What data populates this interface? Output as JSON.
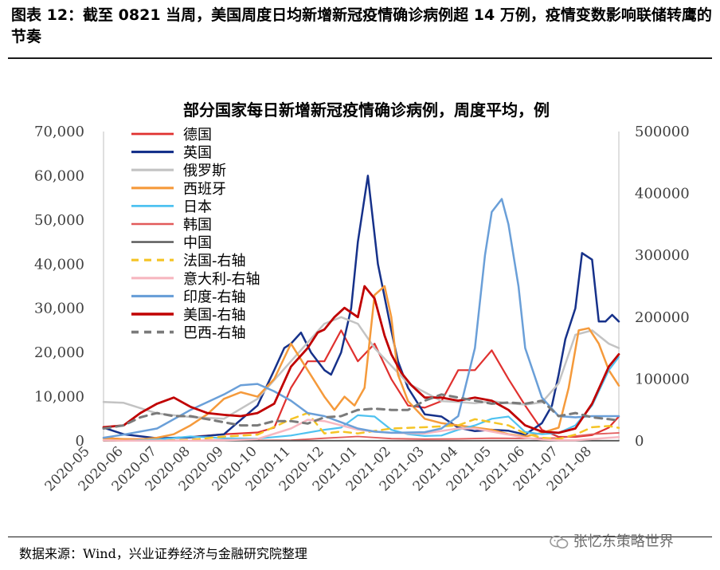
{
  "figure_title": "图表 12：截至 0821 当周，美国周度日均新增新冠疫情确诊病例超 14 万例，疫情变数影响联储转鹰的节奏",
  "source": "数据来源：Wind，兴业证券经济与金融研究院整理",
  "watermark": "张忆东策略世界",
  "chart_data": {
    "type": "line",
    "title": "部分国家每日新增新冠疫情确诊病例，周度平均，例",
    "ylim_left": [
      0,
      70000
    ],
    "ylim_right": [
      0,
      500000
    ],
    "left_ticks": [
      "0",
      "10,000",
      "20,000",
      "30,000",
      "40,000",
      "50,000",
      "60,000",
      "70,000"
    ],
    "right_ticks": [
      "0",
      "100000",
      "200000",
      "300000",
      "400000",
      "500000"
    ],
    "x_ticks": [
      "2020-05",
      "2020-06",
      "2020-07",
      "2020-08",
      "2020-09",
      "2020-10",
      "2020-11",
      "2020-12",
      "2021-01",
      "2021-02",
      "2021-03",
      "2021-04",
      "2021-05",
      "2021-06",
      "2021-07",
      "2021-08"
    ],
    "x_start": 0.4,
    "x_end": 15.8,
    "series": [
      {
        "name": "德国",
        "axis": "left",
        "color": "#e0312f",
        "dash": false,
        "width": 2.2,
        "x": [
          0.4,
          1,
          2,
          3,
          4,
          5,
          5.5,
          6,
          6.5,
          7,
          7.5,
          8,
          8.5,
          9,
          9.5,
          10,
          10.5,
          11,
          11.5,
          12,
          12.5,
          13,
          13.5,
          14,
          14.5,
          15,
          15.5,
          15.8
        ],
        "y": [
          700,
          400,
          400,
          900,
          1500,
          1900,
          3000,
          12000,
          18000,
          18000,
          25000,
          18000,
          22000,
          14000,
          8000,
          7500,
          9000,
          16000,
          16000,
          20500,
          14000,
          8000,
          2500,
          900,
          900,
          1300,
          3000,
          5500
        ]
      },
      {
        "name": "英国",
        "axis": "left",
        "color": "#16318a",
        "dash": false,
        "width": 2.5,
        "x": [
          0.4,
          1,
          2,
          3,
          4,
          5,
          5.5,
          5.8,
          6,
          6.3,
          6.6,
          7,
          7.2,
          7.5,
          7.8,
          8,
          8.3,
          8.6,
          9,
          9.2,
          9.5,
          10,
          10.5,
          11,
          11.5,
          12,
          12.5,
          13,
          13.5,
          13.8,
          14,
          14.2,
          14.5,
          14.7,
          15,
          15.2,
          15.4,
          15.6,
          15.8
        ],
        "y": [
          3000,
          1500,
          600,
          800,
          1500,
          8000,
          16000,
          21000,
          22000,
          24500,
          20000,
          16000,
          15000,
          20000,
          30000,
          45000,
          60000,
          40000,
          25000,
          18000,
          12000,
          6000,
          5500,
          3000,
          2200,
          2500,
          2300,
          1400,
          4000,
          8000,
          15000,
          23000,
          30000,
          42500,
          41000,
          27000,
          27000,
          28500,
          27000
        ]
      },
      {
        "name": "俄罗斯",
        "axis": "left",
        "color": "#c3c3c3",
        "dash": false,
        "width": 2.5,
        "x": [
          0.4,
          1,
          2,
          3,
          4,
          5,
          6,
          7,
          7.5,
          8,
          8.5,
          9,
          9.5,
          10,
          10.5,
          11,
          11.5,
          12,
          12.5,
          13,
          13.5,
          14,
          14.5,
          15,
          15.5,
          15.8
        ],
        "y": [
          8800,
          8600,
          6200,
          5400,
          5000,
          9500,
          18000,
          26500,
          28000,
          26500,
          21000,
          17000,
          13000,
          11000,
          9000,
          8800,
          8500,
          9000,
          8500,
          8200,
          8700,
          13000,
          24000,
          25000,
          22000,
          21000
        ]
      },
      {
        "name": "西班牙",
        "axis": "left",
        "color": "#f59a3b",
        "dash": false,
        "width": 2.5,
        "x": [
          0.4,
          1,
          1.5,
          2,
          2.5,
          3,
          3.5,
          4,
          4.5,
          5,
          5.5,
          6,
          6.5,
          7,
          7.3,
          7.6,
          7.9,
          8.2,
          8.5,
          8.8,
          9,
          9.2,
          9.5,
          10,
          10.5,
          11,
          11.5,
          12,
          12.5,
          13,
          13.5,
          14,
          14.3,
          14.6,
          14.9,
          15.2,
          15.5,
          15.8
        ],
        "y": [
          600,
          400,
          300,
          700,
          1500,
          3500,
          6000,
          9500,
          11000,
          10000,
          14000,
          22000,
          16000,
          10000,
          7000,
          10000,
          8000,
          12000,
          33000,
          35000,
          28000,
          15000,
          9000,
          5000,
          4000,
          3500,
          3000,
          2500,
          1500,
          1000,
          1800,
          3000,
          12000,
          25000,
          25500,
          22000,
          16000,
          12500
        ]
      },
      {
        "name": "日本",
        "axis": "left",
        "color": "#4fc2f0",
        "dash": false,
        "width": 2.2,
        "x": [
          0.4,
          1,
          2,
          3,
          4,
          5,
          6,
          7,
          7.5,
          8,
          8.5,
          9,
          9.5,
          10,
          10.5,
          11,
          11.5,
          12,
          12.5,
          13,
          13.5,
          14,
          14.5,
          15,
          15.5,
          15.8
        ],
        "y": [
          100,
          50,
          300,
          1000,
          600,
          500,
          1200,
          2500,
          3000,
          5800,
          5500,
          2500,
          1500,
          1100,
          1200,
          2500,
          3500,
          5000,
          5500,
          2000,
          1500,
          1800,
          3500,
          8000,
          16000,
          19000
        ]
      },
      {
        "name": "韩国",
        "axis": "left",
        "color": "#e25a5a",
        "dash": false,
        "width": 1.8,
        "x": [
          0.4,
          2,
          3,
          4,
          5,
          6,
          7,
          8,
          9,
          10,
          11,
          12,
          13,
          14,
          15,
          15.8
        ],
        "y": [
          30,
          50,
          60,
          250,
          100,
          150,
          600,
          1000,
          500,
          400,
          450,
          600,
          550,
          650,
          1500,
          1800
        ]
      },
      {
        "name": "中国",
        "axis": "left",
        "color": "#555555",
        "dash": false,
        "width": 1.8,
        "x": [
          0.4,
          15.8
        ],
        "y": [
          30,
          40
        ]
      },
      {
        "name": "法国-右轴",
        "axis": "right",
        "color": "#f5c425",
        "dash": true,
        "width": 2.5,
        "x": [
          0.4,
          1,
          2,
          3,
          4,
          5,
          6,
          6.5,
          7,
          7.5,
          8,
          9,
          10,
          11,
          11.5,
          12,
          12.5,
          13,
          13.5,
          14,
          14.5,
          15,
          15.5,
          15.8
        ],
        "y": [
          1000,
          500,
          500,
          1500,
          7000,
          10000,
          35000,
          45000,
          12000,
          15000,
          12000,
          20000,
          22000,
          25000,
          35000,
          30000,
          25000,
          12000,
          5000,
          3000,
          10000,
          22000,
          24000,
          21000
        ]
      },
      {
        "name": "意大利-右轴",
        "axis": "right",
        "color": "#f7b7c0",
        "dash": false,
        "width": 2.5,
        "x": [
          0.4,
          1,
          2,
          3,
          4,
          5,
          6,
          6.5,
          7,
          7.5,
          8,
          8.5,
          9,
          10,
          11,
          11.5,
          12,
          12.5,
          13,
          13.5,
          14,
          14.5,
          15,
          15.5,
          15.8
        ],
        "y": [
          1000,
          300,
          200,
          300,
          1000,
          3000,
          20000,
          34000,
          32000,
          25000,
          18000,
          15000,
          13000,
          12000,
          20000,
          20000,
          15000,
          10000,
          5000,
          2000,
          1000,
          1000,
          3000,
          5000,
          6000
        ]
      },
      {
        "name": "印度-右轴",
        "axis": "right",
        "color": "#6a9fd8",
        "dash": false,
        "width": 2.5,
        "x": [
          0.4,
          1,
          2,
          3,
          4,
          4.5,
          5,
          5.5,
          6,
          6.5,
          7,
          7.5,
          8,
          8.5,
          9,
          10,
          10.5,
          11,
          11.5,
          11.8,
          12,
          12.3,
          12.5,
          12.8,
          13,
          13.5,
          14,
          14.5,
          15,
          15.5,
          15.8
        ],
        "y": [
          5000,
          10000,
          20000,
          50000,
          75000,
          90000,
          92000,
          80000,
          65000,
          45000,
          40000,
          30000,
          20000,
          15000,
          13000,
          14000,
          20000,
          40000,
          150000,
          300000,
          370000,
          391000,
          350000,
          250000,
          150000,
          70000,
          40000,
          38000,
          40000,
          40000,
          40000
        ]
      },
      {
        "name": "美国-右轴",
        "axis": "right",
        "color": "#c00000",
        "dash": false,
        "width": 2.8,
        "x": [
          0.4,
          1,
          1.5,
          2,
          2.5,
          3,
          3.5,
          4,
          4.5,
          5,
          5.5,
          6,
          6.5,
          6.8,
          7,
          7.3,
          7.6,
          8,
          8.2,
          8.5,
          8.8,
          9,
          9.3,
          9.6,
          10,
          10.5,
          11,
          11.5,
          12,
          12.5,
          13,
          13.5,
          14,
          14.5,
          15,
          15.5,
          15.8
        ],
        "y": [
          22000,
          25000,
          45000,
          60000,
          70000,
          55000,
          45000,
          42000,
          40000,
          45000,
          60000,
          120000,
          150000,
          175000,
          180000,
          200000,
          215000,
          200000,
          250000,
          230000,
          170000,
          140000,
          110000,
          90000,
          70000,
          70000,
          65000,
          70000,
          65000,
          50000,
          25000,
          15000,
          13000,
          20000,
          60000,
          120000,
          140000
        ]
      },
      {
        "name": "巴西-右轴",
        "axis": "right",
        "color": "#7a7a7a",
        "dash": true,
        "width": 3.0,
        "x": [
          0.4,
          1,
          1.5,
          2,
          2.5,
          3,
          3.5,
          4,
          4.5,
          5,
          5.5,
          6,
          6.5,
          7,
          7.5,
          8,
          8.5,
          9,
          9.5,
          10,
          10.5,
          11,
          11.5,
          12,
          12.5,
          13,
          13.5,
          14,
          14.5,
          15,
          15.5,
          15.8
        ],
        "y": [
          20000,
          25000,
          38000,
          45000,
          40000,
          40000,
          35000,
          30000,
          25000,
          25000,
          32000,
          32000,
          28000,
          38000,
          40000,
          50000,
          52000,
          50000,
          50000,
          65000,
          75000,
          70000,
          65000,
          60000,
          62000,
          60000,
          65000,
          40000,
          45000,
          38000,
          35000,
          33000
        ]
      }
    ]
  }
}
